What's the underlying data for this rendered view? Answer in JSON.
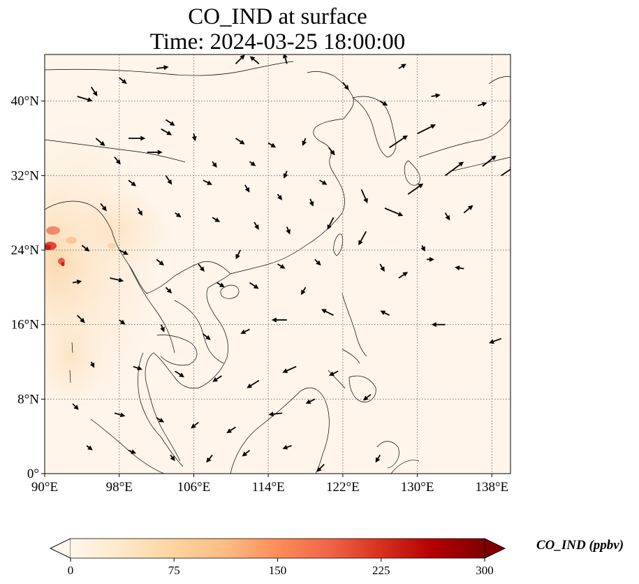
{
  "title": {
    "line1": "CO_IND at surface",
    "line2": "Time: 2024-03-25 18:00:00"
  },
  "map": {
    "lon_range": [
      90,
      140
    ],
    "lat_range": [
      0,
      45
    ],
    "lon_ticks": [
      {
        "value": 90,
        "label": "90°E"
      },
      {
        "value": 98,
        "label": "98°E"
      },
      {
        "value": 106,
        "label": "106°E"
      },
      {
        "value": 114,
        "label": "114°E"
      },
      {
        "value": 122,
        "label": "122°E"
      },
      {
        "value": 130,
        "label": "130°E"
      },
      {
        "value": 138,
        "label": "138°E"
      }
    ],
    "lat_ticks": [
      {
        "value": 0,
        "label": "0°"
      },
      {
        "value": 8,
        "label": "8°N"
      },
      {
        "value": 16,
        "label": "16°N"
      },
      {
        "value": 24,
        "label": "24°N"
      },
      {
        "value": 32,
        "label": "32°N"
      },
      {
        "value": 40,
        "label": "40°N"
      }
    ],
    "gridlines": true,
    "background_color": "#fff5eb",
    "wind_vectors": [
      [
        93.5,
        40.5,
        1,
        -0.3
      ],
      [
        95,
        41.5,
        0.4,
        -0.6
      ],
      [
        98,
        42.5,
        0.5,
        -0.4
      ],
      [
        102,
        43.5,
        0.8,
        0.1
      ],
      [
        110.5,
        44,
        0.6,
        0.6
      ],
      [
        113,
        44,
        -0.6,
        0.5
      ],
      [
        116,
        44,
        -0.2,
        0.7
      ],
      [
        103,
        38,
        0.6,
        -0.4
      ],
      [
        95.5,
        36,
        0.6,
        -0.5
      ],
      [
        99,
        36,
        1.1,
        0
      ],
      [
        102.5,
        37,
        0.7,
        -0.4
      ],
      [
        106,
        36.5,
        0.1,
        -0.5
      ],
      [
        110.5,
        36,
        0.6,
        -0.4
      ],
      [
        114,
        35.5,
        0.5,
        -0.3
      ],
      [
        118,
        36,
        -0.2,
        -0.5
      ],
      [
        120.5,
        35,
        0.4,
        -0.5
      ],
      [
        97.5,
        34,
        0.4,
        -0.5
      ],
      [
        101,
        34.5,
        1,
        0
      ],
      [
        108,
        33.5,
        0.3,
        -0.4
      ],
      [
        112,
        33.5,
        0.4,
        -0.3
      ],
      [
        116,
        32.5,
        -0.2,
        -0.5
      ],
      [
        119.5,
        31.5,
        0.5,
        -0.3
      ],
      [
        99,
        31.5,
        0.5,
        -0.4
      ],
      [
        103,
        32,
        0.4,
        -0.6
      ],
      [
        107,
        31.5,
        0.6,
        -0.3
      ],
      [
        111.5,
        31,
        0.3,
        -0.5
      ],
      [
        115,
        30,
        0.3,
        -0.4
      ],
      [
        118.5,
        29.5,
        0.2,
        -0.5
      ],
      [
        96,
        29,
        0.4,
        -0.5
      ],
      [
        100,
        28.5,
        0.3,
        -0.5
      ],
      [
        104,
        28,
        0.4,
        -0.3
      ],
      [
        108,
        27.5,
        0.5,
        -0.3
      ],
      [
        112.5,
        27,
        0.3,
        -0.5
      ],
      [
        116,
        26.5,
        0.2,
        -0.5
      ],
      [
        121,
        27.5,
        -0.4,
        -0.8
      ],
      [
        124,
        30.5,
        0.4,
        -0.9
      ],
      [
        126.5,
        28.5,
        1.2,
        -0.5
      ],
      [
        124.5,
        26,
        -0.5,
        -0.9
      ],
      [
        94,
        24.5,
        0.5,
        -0.4
      ],
      [
        98,
        24,
        0.6,
        -0.3
      ],
      [
        102,
        23,
        0.5,
        -0.4
      ],
      [
        106.5,
        22.5,
        0.4,
        -0.5
      ],
      [
        111,
        24,
        -0.3,
        -0.6
      ],
      [
        115,
        22.5,
        0.5,
        -0.3
      ],
      [
        119,
        23,
        0.4,
        -0.4
      ],
      [
        93,
        20.5,
        0.6,
        0.1
      ],
      [
        97,
        21,
        0.9,
        -0.2
      ],
      [
        103,
        20,
        0.4,
        -0.4
      ],
      [
        108.5,
        20.5,
        0.5,
        -0.3
      ],
      [
        112,
        20.5,
        0.6,
        -0.4
      ],
      [
        118,
        20,
        -0.3,
        -0.5
      ],
      [
        128,
        21,
        0.6,
        0.4
      ],
      [
        126,
        22.5,
        0.3,
        -0.5
      ],
      [
        131,
        23,
        0.5,
        0
      ],
      [
        135,
        22,
        -0.6,
        0.1
      ],
      [
        93.5,
        17,
        0.5,
        -0.5
      ],
      [
        98,
        16.5,
        0.4,
        -0.3
      ],
      [
        102.5,
        16,
        0.2,
        -0.5
      ],
      [
        107,
        15,
        0.5,
        -0.4
      ],
      [
        112,
        15.5,
        -0.6,
        -0.3
      ],
      [
        116,
        16.5,
        -1,
        0
      ],
      [
        121,
        17,
        -0.8,
        0.4
      ],
      [
        127,
        17,
        -0.6,
        0.3
      ],
      [
        133,
        16,
        -0.9,
        0
      ],
      [
        139,
        14.5,
        -0.8,
        -0.3
      ],
      [
        95,
        12,
        0.2,
        -0.4
      ],
      [
        99.5,
        11.5,
        0.6,
        -0.2
      ],
      [
        104,
        11,
        0.6,
        -0.4
      ],
      [
        109,
        10.5,
        -0.6,
        -0.4
      ],
      [
        113,
        10,
        -0.8,
        -0.5
      ],
      [
        117,
        11.5,
        -0.9,
        -0.4
      ],
      [
        121.5,
        11,
        -0.6,
        -0.3
      ],
      [
        93,
        7.5,
        0.4,
        -0.4
      ],
      [
        97.5,
        6.5,
        0.7,
        -0.2
      ],
      [
        102,
        6,
        0.5,
        -0.3
      ],
      [
        106.5,
        5.5,
        -0.5,
        -0.4
      ],
      [
        110.5,
        5,
        -0.6,
        -0.4
      ],
      [
        115.5,
        6.5,
        -0.9,
        -0.1
      ],
      [
        119,
        8,
        -0.6,
        -0.3
      ],
      [
        125,
        8.5,
        -0.5,
        -0.4
      ],
      [
        94.5,
        3,
        0.4,
        -0.3
      ],
      [
        99,
        2.5,
        0.5,
        -0.2
      ],
      [
        103.5,
        2,
        0.3,
        -0.4
      ],
      [
        108,
        2,
        -0.4,
        -0.5
      ],
      [
        112,
        2.5,
        -0.5,
        -0.4
      ],
      [
        116.5,
        3,
        -0.6,
        -0.2
      ],
      [
        120,
        1,
        -0.5,
        -0.5
      ],
      [
        126,
        2,
        -0.3,
        -0.5
      ],
      [
        130.5,
        24.5,
        0.2,
        -0.4
      ],
      [
        133,
        28,
        0.3,
        -0.5
      ],
      [
        127,
        35,
        1.2,
        0.8
      ],
      [
        130,
        36.5,
        1.2,
        0.6
      ],
      [
        133,
        32,
        1.2,
        0.9
      ],
      [
        137,
        33,
        0.9,
        0.7
      ],
      [
        139,
        32,
        0.9,
        0.6
      ],
      [
        135,
        28,
        0.6,
        0.5
      ],
      [
        129,
        30,
        1,
        0.7
      ],
      [
        131.5,
        40.5,
        0.6,
        0.1
      ],
      [
        136.5,
        39.5,
        0.6,
        0.2
      ],
      [
        126,
        40,
        0.5,
        -0.3
      ],
      [
        122,
        42,
        0.4,
        -0.5
      ],
      [
        128,
        43.5,
        0.5,
        0.3
      ]
    ],
    "land_color": "#fdf2e5"
  },
  "colorbar": {
    "label": "CO_IND (ppbv)",
    "min": 0,
    "max": 300,
    "colormap": "OrRd",
    "extend": "both",
    "ticks": [
      {
        "value": 0,
        "label": "0"
      },
      {
        "value": 75,
        "label": "75"
      },
      {
        "value": 150,
        "label": "150"
      },
      {
        "value": 225,
        "label": "225"
      },
      {
        "value": 300,
        "label": "300"
      }
    ],
    "colors": [
      "#fff7ec",
      "#fee8c8",
      "#fdd49e",
      "#fdbb84",
      "#fc8d59",
      "#ef6548",
      "#d7301f",
      "#b30000",
      "#7f0000"
    ]
  }
}
